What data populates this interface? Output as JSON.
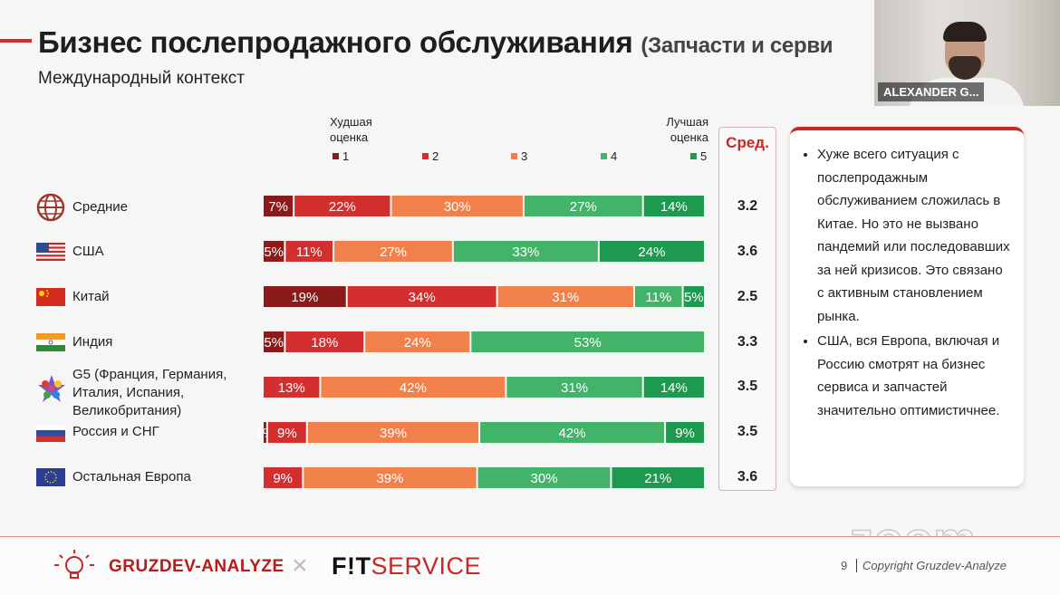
{
  "header": {
    "title": "Бизнес послепродажного обслуживания",
    "title_suffix": "(Запчасти и серви",
    "subtitle": "Международный контекст"
  },
  "video": {
    "participant_name": "ALEXANDER G..."
  },
  "legend": {
    "worst_label": "Худшая\nоценка",
    "best_label": "Лучшая\nоценка",
    "avg_header": "Сред.",
    "scores": [
      "1",
      "2",
      "3",
      "4",
      "5"
    ]
  },
  "colors": {
    "s1": "#8b1a1a",
    "s2": "#d32f2f",
    "s3": "#f2804a",
    "s4": "#43b36a",
    "s5": "#1d9a4f",
    "accent": "#c62828"
  },
  "chart_data": {
    "type": "bar",
    "orientation": "horizontal",
    "stacked": true,
    "title": "Бизнес послепродажного обслуживания",
    "categories": [
      "Средние",
      "США",
      "Китай",
      "Индия",
      "G5 (Франция, Германия, Италия, Испания, Великобритания)",
      "Россия и СНГ",
      "Остальная Европа"
    ],
    "flags": [
      "globe-icon",
      "usa-flag-icon",
      "china-flag-icon",
      "india-flag-icon",
      "g5-logo-icon",
      "russia-flag-icon",
      "eu-flag-icon"
    ],
    "series": [
      {
        "name": "1",
        "values": [
          7,
          5,
          19,
          5,
          0,
          1,
          0
        ]
      },
      {
        "name": "2",
        "values": [
          22,
          11,
          34,
          18,
          13,
          9,
          9
        ]
      },
      {
        "name": "3",
        "values": [
          30,
          27,
          31,
          24,
          42,
          39,
          39
        ]
      },
      {
        "name": "4",
        "values": [
          27,
          33,
          11,
          53,
          31,
          42,
          30
        ]
      },
      {
        "name": "5",
        "values": [
          14,
          24,
          5,
          0,
          14,
          9,
          21
        ]
      }
    ],
    "averages": [
      "3.2",
      "3.6",
      "2.5",
      "3.3",
      "3.5",
      "3.5",
      "3.6"
    ],
    "xlim": [
      0,
      100
    ],
    "unit": "%"
  },
  "note": {
    "bullets": [
      "Хуже всего ситуация с послепродажным обслуживанием сложилась в Китае. Но это не вызвано пандемий или последовавших за ней кризисов. Это связано с активным становлением рынка.",
      "США, вся Европа, включая и Россию смотрят на бизнес сервиса и запчастей значительно оптимистичнее."
    ]
  },
  "footer": {
    "logo_left": "GRUZDEV-ANALYZE",
    "separator": "×",
    "logo_right_a": "F!T",
    "logo_right_b": "SERVICE",
    "page_number": "9",
    "copyright": "Copyright Gruzdev-Analyze",
    "watermark": "zoom"
  }
}
